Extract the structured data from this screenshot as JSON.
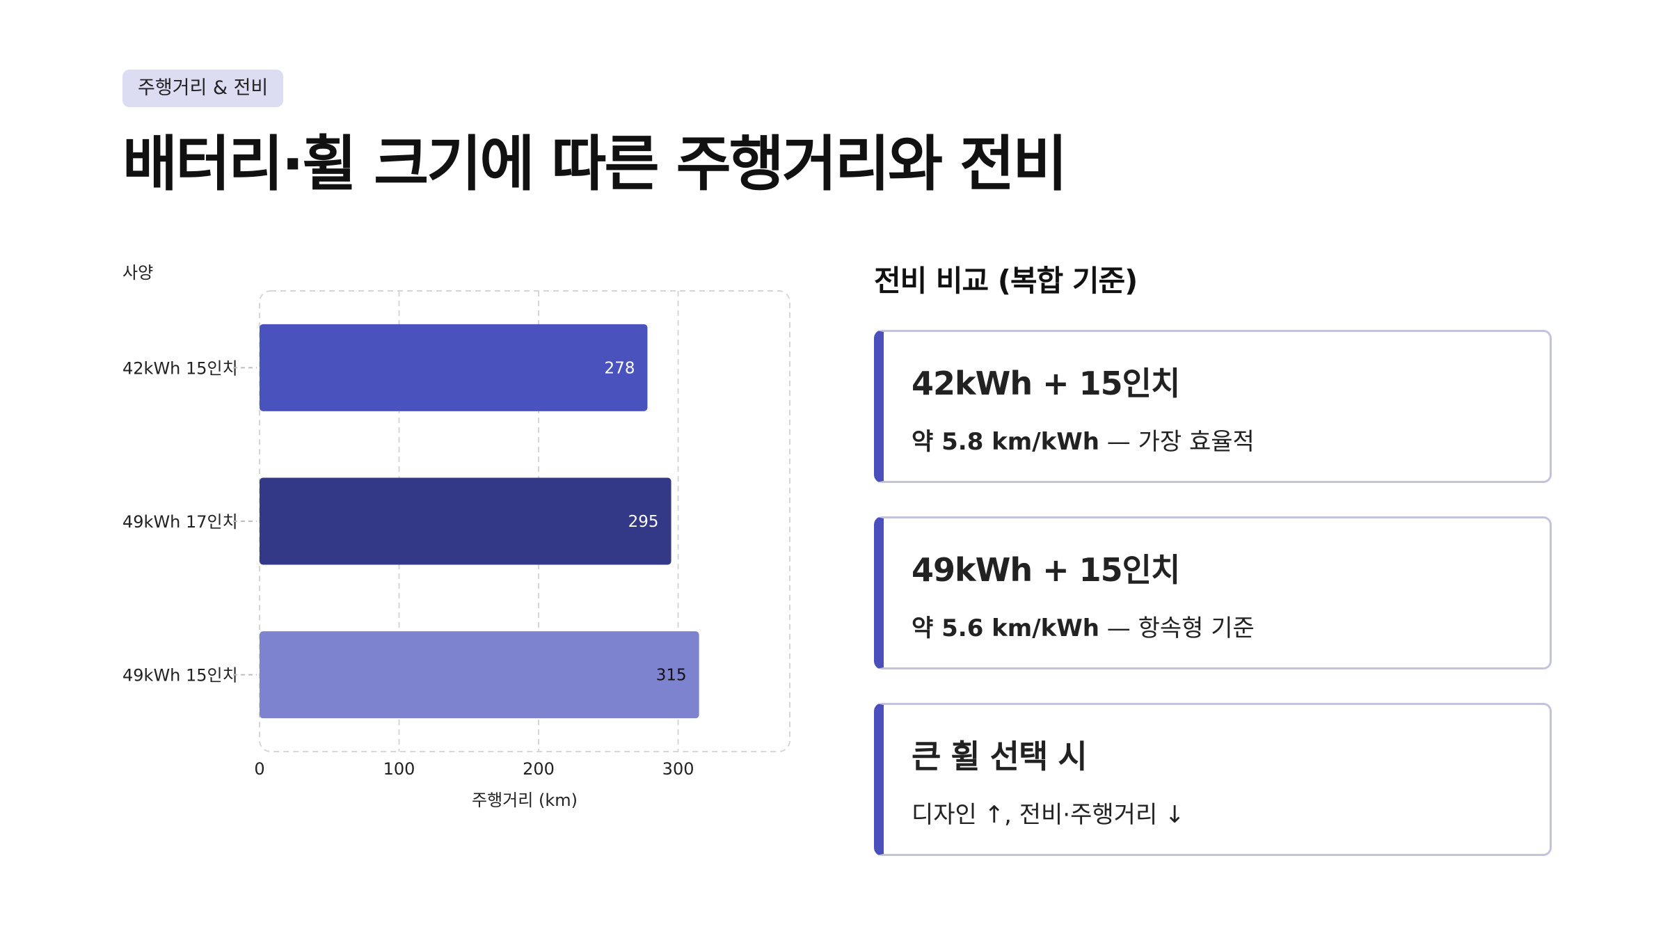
{
  "tag": "주행거리 & 전비",
  "title": "배터리·휠 크기에 따른 주행거리와 전비",
  "chart_data": {
    "type": "bar",
    "orientation": "horizontal",
    "ylabel": "사양",
    "xlabel": "주행거리 (km)",
    "categories": [
      "42kWh 15인치",
      "49kWh 17인치",
      "49kWh 15인치"
    ],
    "values": [
      278,
      295,
      315
    ],
    "value_labels": [
      "278",
      "295",
      "315"
    ],
    "colors": [
      "#4a52bd",
      "#333887",
      "#7e83cf"
    ],
    "label_colors": [
      "#ffffff",
      "#ffffff",
      "#111111"
    ],
    "xticks": [
      0,
      100,
      200,
      300
    ],
    "xlim": [
      0,
      380
    ],
    "grid": true
  },
  "comparison": {
    "title": "전비 비교 (복합 기준)",
    "cards": [
      {
        "title": "42kWh + 15인치",
        "value": "약 5.8 km/kWh",
        "note": "— 가장 효율적"
      },
      {
        "title": "49kWh + 15인치",
        "value": "약 5.6 km/kWh",
        "note": "— 항속형 기준"
      },
      {
        "title": "큰 휠 선택 시",
        "value": "",
        "note": "디자인 ↑, 전비·주행거리 ↓"
      }
    ]
  },
  "accent_color": "#4a4fbb"
}
